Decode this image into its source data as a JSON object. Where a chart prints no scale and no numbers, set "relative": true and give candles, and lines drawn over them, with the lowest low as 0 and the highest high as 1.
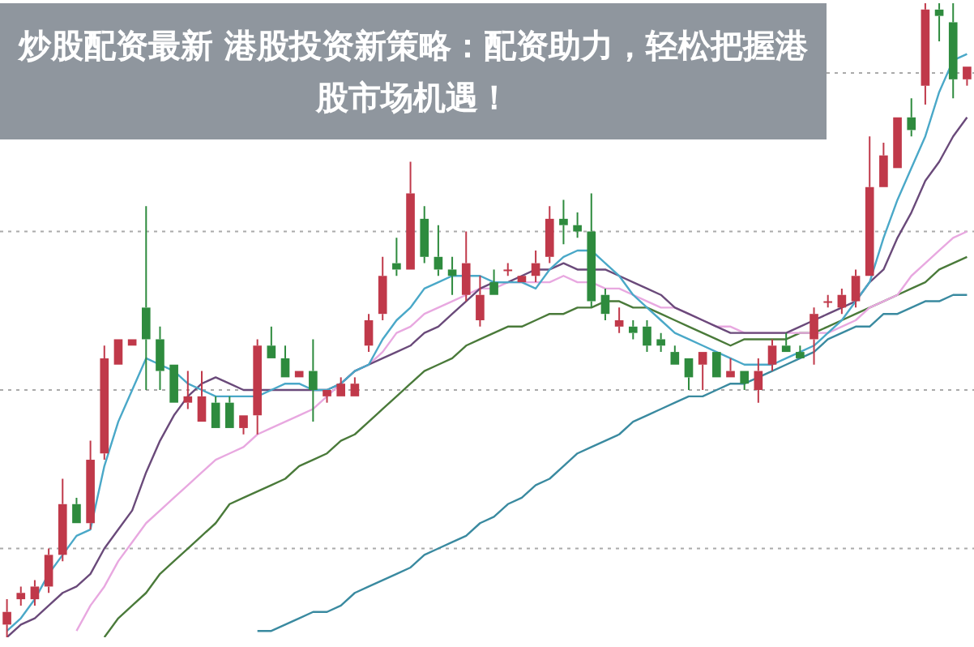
{
  "chart_data": {
    "type": "candlestick",
    "title": "炒股配资最新 港股投资新策略：配资助力，轻松把握港股市场机遇！",
    "relative": true,
    "categories": [
      null,
      null,
      null,
      null,
      null,
      null,
      null,
      null,
      null,
      null,
      null,
      null,
      null,
      null,
      null,
      null,
      null,
      null,
      null,
      null,
      null,
      null,
      null,
      null,
      null,
      null,
      null,
      null,
      null,
      null,
      null,
      null,
      null,
      null,
      null,
      null,
      null,
      null,
      null,
      null,
      null,
      null,
      null,
      null,
      null,
      null,
      null,
      null,
      null,
      null,
      null,
      null,
      null,
      null,
      null,
      null,
      null,
      null,
      null,
      null,
      null,
      null,
      null,
      null,
      null,
      null,
      null,
      null,
      null,
      null
    ],
    "ohlc": [
      [
        0.02,
        0.06,
        0,
        0.04
      ],
      [
        0.06,
        0.08,
        0.05,
        0.07
      ],
      [
        0.06,
        0.09,
        0.05,
        0.08
      ],
      [
        0.08,
        0.14,
        0.07,
        0.13
      ],
      [
        0.13,
        0.25,
        0.12,
        0.21
      ],
      [
        0.21,
        0.22,
        0.18,
        0.18
      ],
      [
        0.18,
        0.31,
        0.17,
        0.28
      ],
      [
        0.29,
        0.46,
        0.28,
        0.44
      ],
      [
        0.43,
        0.47,
        0.43,
        0.47
      ],
      [
        0.46,
        0.47,
        0.46,
        0.47
      ],
      [
        0.52,
        0.68,
        0.39,
        0.47
      ],
      [
        0.47,
        0.49,
        0.39,
        0.42
      ],
      [
        0.43,
        0.43,
        0.37,
        0.37
      ],
      [
        0.37,
        0.42,
        0.36,
        0.38
      ],
      [
        0.34,
        0.42,
        0.34,
        0.38
      ],
      [
        0.37,
        0.38,
        0.33,
        0.33
      ],
      [
        0.37,
        0.38,
        0.33,
        0.33
      ],
      [
        0.33,
        0.35,
        0.32,
        0.35
      ],
      [
        0.35,
        0.47,
        0.32,
        0.46
      ],
      [
        0.46,
        0.49,
        0.44,
        0.44
      ],
      [
        0.44,
        0.46,
        0.41,
        0.41
      ],
      [
        0.41,
        0.42,
        0.41,
        0.42
      ],
      [
        0.42,
        0.47,
        0.34,
        0.39
      ],
      [
        0.38,
        0.39,
        0.37,
        0.39
      ],
      [
        0.38,
        0.41,
        0.38,
        0.4
      ],
      [
        0.38,
        0.41,
        0.38,
        0.4
      ],
      [
        0.46,
        0.51,
        0.45,
        0.5
      ],
      [
        0.51,
        0.6,
        0.5,
        0.57
      ],
      [
        0.59,
        0.63,
        0.57,
        0.58
      ],
      [
        0.58,
        0.75,
        0.58,
        0.7
      ],
      [
        0.66,
        0.68,
        0.59,
        0.6
      ],
      [
        0.6,
        0.65,
        0.57,
        0.58
      ],
      [
        0.58,
        0.6,
        0.54,
        0.57
      ],
      [
        0.54,
        0.64,
        0.53,
        0.59
      ],
      [
        0.5,
        0.57,
        0.49,
        0.54
      ],
      [
        0.56,
        0.58,
        0.54,
        0.54
      ],
      [
        0.58,
        0.59,
        0.57,
        0.58
      ],
      [
        0.56,
        0.57,
        0.56,
        0.57
      ],
      [
        0.57,
        0.61,
        0.56,
        0.59
      ],
      [
        0.6,
        0.68,
        0.59,
        0.66
      ],
      [
        0.66,
        0.69,
        0.62,
        0.65
      ],
      [
        0.65,
        0.67,
        0.63,
        0.64
      ],
      [
        0.64,
        0.7,
        0.52,
        0.53
      ],
      [
        0.54,
        0.55,
        0.5,
        0.51
      ],
      [
        0.49,
        0.52,
        0.48,
        0.5
      ],
      [
        0.49,
        0.5,
        0.47,
        0.48
      ],
      [
        0.49,
        0.5,
        0.45,
        0.46
      ],
      [
        0.47,
        0.48,
        0.45,
        0.46
      ],
      [
        0.45,
        0.46,
        0.43,
        0.43
      ],
      [
        0.44,
        0.44,
        0.39,
        0.41
      ],
      [
        0.43,
        0.45,
        0.39,
        0.45
      ],
      [
        0.45,
        0.45,
        0.41,
        0.41
      ],
      [
        0.41,
        0.44,
        0.41,
        0.42
      ],
      [
        0.42,
        0.42,
        0.39,
        0.4
      ],
      [
        0.39,
        0.44,
        0.37,
        0.42
      ],
      [
        0.43,
        0.47,
        0.42,
        0.46
      ],
      [
        0.46,
        0.48,
        0.45,
        0.45
      ],
      [
        0.45,
        0.46,
        0.44,
        0.44
      ],
      [
        0.47,
        0.52,
        0.43,
        0.51
      ],
      [
        0.53,
        0.54,
        0.52,
        0.53
      ],
      [
        0.52,
        0.55,
        0.51,
        0.54
      ],
      [
        0.53,
        0.58,
        0.52,
        0.57
      ],
      [
        0.57,
        0.79,
        0.57,
        0.71
      ],
      [
        0.71,
        0.78,
        0.71,
        0.76
      ],
      [
        0.74,
        0.82,
        0.74,
        0.82
      ],
      [
        0.82,
        0.85,
        0.79,
        0.8
      ],
      [
        0.87,
        1,
        0.84,
        0.99
      ],
      [
        0.99,
        1,
        0.94,
        0.98
      ],
      [
        0.97,
        1,
        0.85,
        0.88
      ],
      [
        0.88,
        0.9,
        0.87,
        0.9
      ]
    ],
    "colors": [
      "#c0394a",
      "#c0394a",
      "#c0394a",
      "#c0394a",
      "#c0394a",
      "#2e8b3e",
      "#c0394a",
      "#c0394a",
      "#c0394a",
      "#c0394a",
      "#2e8b3e",
      "#2e8b3e",
      "#2e8b3e",
      "#c0394a",
      "#c0394a",
      "#2e8b3e",
      "#2e8b3e",
      "#c0394a",
      "#c0394a",
      "#2e8b3e",
      "#2e8b3e",
      "#c0394a",
      "#2e8b3e",
      "#c0394a",
      "#c0394a",
      "#c0394a",
      "#c0394a",
      "#c0394a",
      "#2e8b3e",
      "#c0394a",
      "#2e8b3e",
      "#2e8b3e",
      "#2e8b3e",
      "#c0394a",
      "#c0394a",
      "#2e8b3e",
      "#c0394a",
      "#c0394a",
      "#c0394a",
      "#c0394a",
      "#2e8b3e",
      "#2e8b3e",
      "#2e8b3e",
      "#2e8b3e",
      "#c0394a",
      "#2e8b3e",
      "#2e8b3e",
      "#2e8b3e",
      "#2e8b3e",
      "#2e8b3e",
      "#c0394a",
      "#2e8b3e",
      "#c0394a",
      "#2e8b3e",
      "#c0394a",
      "#c0394a",
      "#2e8b3e",
      "#2e8b3e",
      "#c0394a",
      "#c0394a",
      "#c0394a",
      "#c0394a",
      "#c0394a",
      "#c0394a",
      "#c0394a",
      "#2e8b3e",
      "#c0394a",
      "#2e8b3e",
      "#2e8b3e",
      "#c0394a"
    ],
    "series": [
      {
        "type": "line",
        "color": "#4aa8c8",
        "values": [
          0.01,
          0.03,
          0.06,
          0.1,
          0.13,
          0.16,
          0.17,
          0.27,
          0.34,
          0.39,
          0.44,
          0.43,
          0.42,
          0.4,
          0.39,
          0.38,
          0.38,
          0.38,
          0.38,
          0.39,
          0.4,
          0.4,
          0.39,
          0.39,
          0.4,
          0.42,
          0.43,
          0.47,
          0.5,
          0.52,
          0.55,
          0.56,
          0.57,
          0.57,
          0.57,
          0.56,
          0.56,
          0.56,
          0.55,
          0.58,
          0.6,
          0.61,
          0.61,
          0.59,
          0.57,
          0.54,
          0.52,
          0.5,
          0.48,
          0.47,
          0.46,
          0.45,
          0.44,
          0.43,
          0.43,
          0.43,
          0.44,
          0.45,
          0.46,
          0.48,
          0.5,
          0.53,
          0.56,
          0.63,
          0.69,
          0.74,
          0.79,
          0.86,
          0.91,
          0.92
        ]
      },
      {
        "type": "line",
        "color": "#6a4a7a",
        "values": [
          0,
          0.02,
          0.03,
          0.05,
          0.07,
          0.08,
          0.1,
          0.14,
          0.17,
          0.2,
          0.26,
          0.31,
          0.35,
          0.38,
          0.4,
          0.41,
          0.4,
          0.39,
          0.39,
          0.39,
          0.39,
          0.39,
          0.39,
          0.39,
          0.4,
          0.42,
          0.43,
          0.44,
          0.45,
          0.46,
          0.48,
          0.49,
          0.51,
          0.53,
          0.55,
          0.56,
          0.56,
          0.57,
          0.58,
          0.58,
          0.59,
          0.58,
          0.58,
          0.58,
          0.57,
          0.56,
          0.55,
          0.54,
          0.52,
          0.51,
          0.5,
          0.49,
          0.48,
          0.48,
          0.48,
          0.48,
          0.48,
          0.49,
          0.5,
          0.51,
          0.52,
          0.53,
          0.56,
          0.58,
          0.63,
          0.67,
          0.72,
          0.75,
          0.79,
          0.82
        ]
      },
      {
        "type": "line",
        "color": "#e8a8e0",
        "values": [
          null,
          null,
          null,
          null,
          null,
          0.01,
          0.05,
          0.08,
          0.12,
          0.15,
          0.18,
          0.2,
          0.22,
          0.24,
          0.26,
          0.28,
          0.29,
          0.3,
          0.32,
          0.33,
          0.34,
          0.35,
          0.36,
          0.38,
          0.4,
          0.42,
          0.43,
          0.45,
          0.48,
          0.49,
          0.51,
          0.52,
          0.53,
          0.54,
          0.55,
          0.55,
          0.56,
          0.56,
          0.56,
          0.56,
          0.57,
          0.56,
          0.56,
          0.55,
          0.55,
          0.54,
          0.53,
          0.52,
          0.52,
          0.51,
          0.5,
          0.49,
          0.49,
          0.48,
          0.48,
          0.48,
          0.48,
          0.48,
          0.48,
          0.48,
          0.49,
          0.5,
          0.52,
          0.53,
          0.54,
          0.57,
          0.59,
          0.61,
          0.63,
          0.64
        ]
      },
      {
        "type": "line",
        "color": "#4a7a3a",
        "values": [
          null,
          null,
          null,
          null,
          null,
          null,
          null,
          0,
          0.03,
          0.05,
          0.07,
          0.1,
          0.12,
          0.14,
          0.16,
          0.18,
          0.21,
          0.22,
          0.23,
          0.24,
          0.25,
          0.27,
          0.28,
          0.29,
          0.31,
          0.32,
          0.34,
          0.36,
          0.38,
          0.4,
          0.42,
          0.43,
          0.44,
          0.46,
          0.47,
          0.48,
          0.49,
          0.49,
          0.5,
          0.51,
          0.51,
          0.52,
          0.52,
          0.53,
          0.53,
          0.52,
          0.52,
          0.51,
          0.5,
          0.49,
          0.48,
          0.47,
          0.46,
          0.47,
          0.47,
          0.47,
          0.47,
          0.48,
          0.48,
          0.49,
          0.5,
          0.51,
          0.52,
          0.53,
          0.54,
          0.55,
          0.56,
          0.58,
          0.59,
          0.6
        ]
      },
      {
        "type": "line",
        "color": "#3a8aa0",
        "values": [
          null,
          null,
          null,
          null,
          null,
          null,
          null,
          null,
          null,
          null,
          null,
          null,
          null,
          null,
          null,
          null,
          null,
          null,
          0.01,
          0.01,
          0.02,
          0.03,
          0.04,
          0.04,
          0.05,
          0.07,
          0.08,
          0.09,
          0.1,
          0.11,
          0.13,
          0.14,
          0.15,
          0.16,
          0.18,
          0.19,
          0.21,
          0.22,
          0.24,
          0.25,
          0.27,
          0.29,
          0.3,
          0.31,
          0.32,
          0.34,
          0.35,
          0.36,
          0.37,
          0.38,
          0.38,
          0.39,
          0.4,
          0.4,
          0.41,
          0.42,
          0.43,
          0.44,
          0.45,
          0.47,
          0.48,
          0.49,
          0.49,
          0.51,
          0.51,
          0.52,
          0.53,
          0.53,
          0.54,
          0.54
        ]
      }
    ],
    "grid": "y"
  }
}
